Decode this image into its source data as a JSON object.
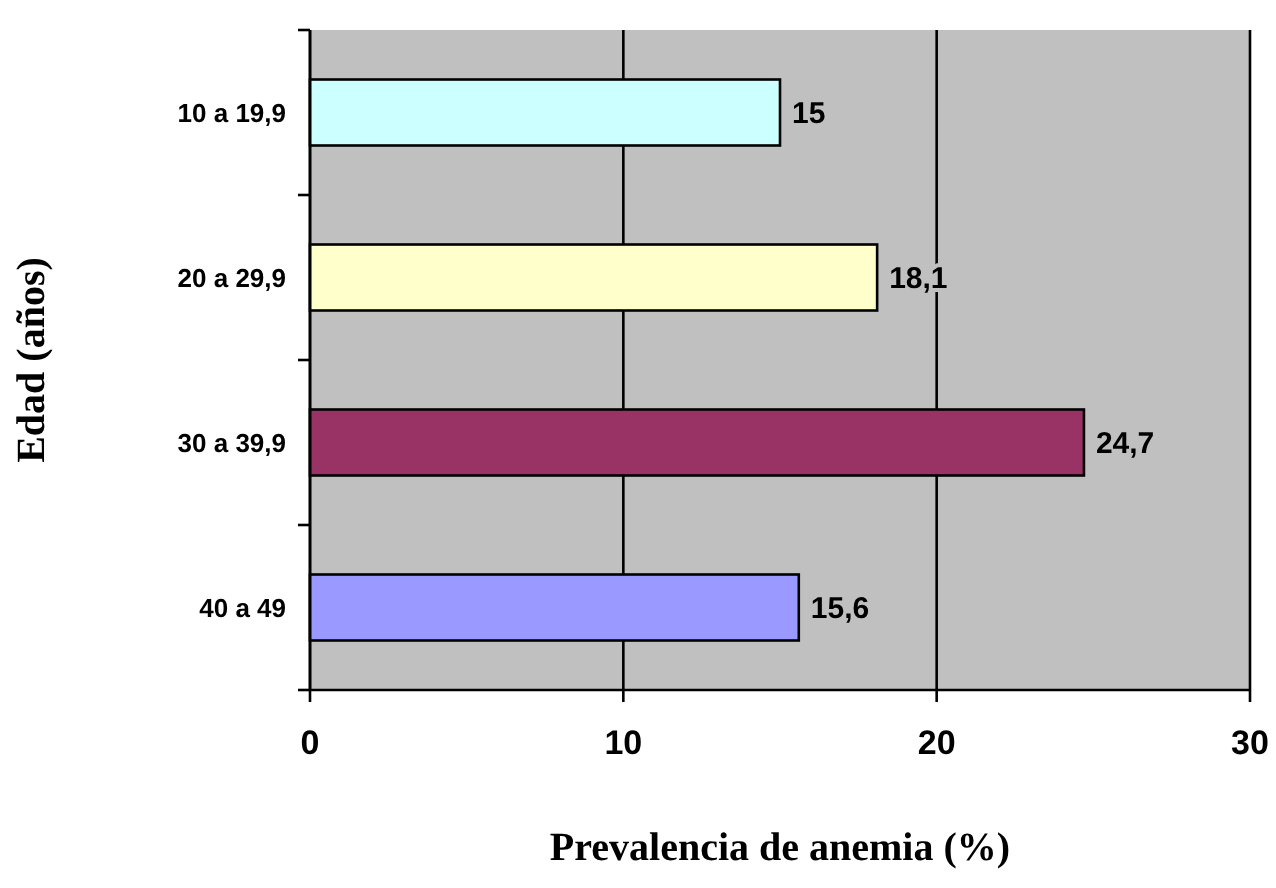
{
  "chart_data": {
    "type": "bar",
    "orientation": "horizontal",
    "xlabel": "Prevalencia de anemia (%)",
    "ylabel": "Edad (años)",
    "categories": [
      "10 a 19,9",
      "20 a 29,9",
      "30 a 39,9",
      "40 a 49"
    ],
    "values": [
      15,
      18.1,
      24.7,
      15.6
    ],
    "colors": [
      "#ccffff",
      "#ffffcc",
      "#993366",
      "#9999ff"
    ],
    "value_labels": [
      "15",
      "18,1",
      "24,7",
      "15,6"
    ],
    "xlim": [
      0,
      30
    ],
    "xticks": [
      0,
      10,
      20,
      30
    ],
    "grid": "x"
  }
}
